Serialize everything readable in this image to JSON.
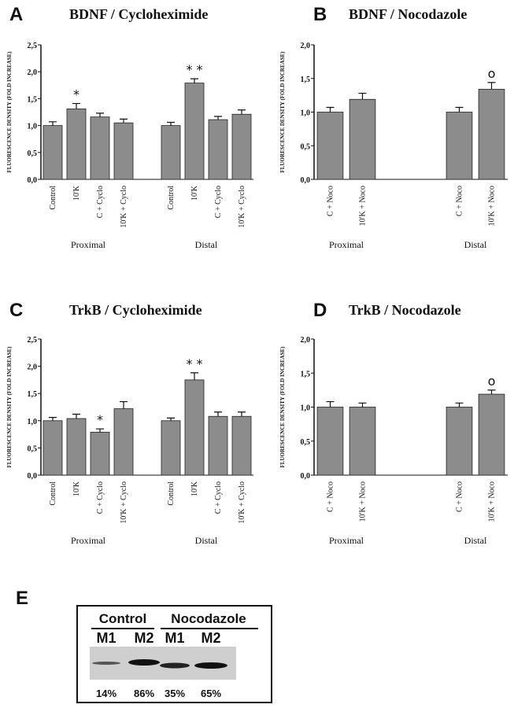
{
  "chart_data": [
    {
      "panel": "A",
      "type": "bar",
      "title": "BDNF / Cycloheximide",
      "ylabel": "FLUORESCENCE DENSITY (FOLD INCREASE)",
      "groups": [
        "Proximal",
        "Distal"
      ],
      "categories": [
        "Control",
        "10'K",
        "C + Cyclo",
        "10'K + Cyclo",
        "Control",
        "10'K",
        "C + Cyclo",
        "10'K + Cyclo"
      ],
      "values": [
        1.0,
        1.31,
        1.16,
        1.05,
        1.0,
        1.79,
        1.11,
        1.21
      ],
      "errors": [
        0.07,
        0.1,
        0.07,
        0.07,
        0.06,
        0.08,
        0.06,
        0.08
      ],
      "significance": [
        null,
        "*",
        null,
        null,
        null,
        "* *",
        null,
        null
      ],
      "color": "#8c8c8c",
      "ylim": [
        0,
        2.5
      ],
      "yticks": [
        {
          "value": 0,
          "label": "0,0"
        },
        {
          "value": 0.5,
          "label": "0,5"
        },
        {
          "value": 1,
          "label": "1,0"
        },
        {
          "value": 1.5,
          "label": "1,5"
        },
        {
          "value": 2,
          "label": "2,0"
        },
        {
          "value": 2.5,
          "label": "2,5"
        }
      ]
    },
    {
      "panel": "B",
      "type": "bar",
      "title": "BDNF / Nocodazole",
      "ylabel": "FLUORESCENCE DENSITY (FOLD INCREASE)",
      "groups": [
        "Proximal",
        "Distal"
      ],
      "categories": [
        "C + Noco",
        "10'K + Noco",
        "C + Noco",
        "10'K + Noco"
      ],
      "values": [
        1.0,
        1.19,
        1.0,
        1.34
      ],
      "errors": [
        0.07,
        0.09,
        0.07,
        0.1
      ],
      "significance": [
        null,
        null,
        null,
        "o"
      ],
      "color": "#8c8c8c",
      "ylim": [
        0,
        2
      ],
      "yticks": [
        {
          "value": 0,
          "label": "0,0"
        },
        {
          "value": 0.5,
          "label": "0,5"
        },
        {
          "value": 1,
          "label": "1,0"
        },
        {
          "value": 1.5,
          "label": "1,5"
        },
        {
          "value": 2,
          "label": "2,0"
        }
      ]
    },
    {
      "panel": "C",
      "type": "bar",
      "title": "TrkB / Cycloheximide",
      "ylabel": "FLUORESCENCE DENSITY (FOLD INCREASE)",
      "groups": [
        "Proximal",
        "Distal"
      ],
      "categories": [
        "Control",
        "10'K",
        "C + Cyclo",
        "10'K + Cyclo",
        "Control",
        "10'K",
        "C + Cyclo",
        "10'K + Cyclo"
      ],
      "values": [
        1.0,
        1.04,
        0.79,
        1.22,
        1.0,
        1.75,
        1.08,
        1.08
      ],
      "errors": [
        0.06,
        0.08,
        0.06,
        0.13,
        0.05,
        0.13,
        0.08,
        0.08
      ],
      "significance": [
        null,
        null,
        "*",
        null,
        null,
        "* *",
        null,
        null
      ],
      "color": "#8c8c8c",
      "ylim": [
        0,
        2.5
      ],
      "yticks": [
        {
          "value": 0,
          "label": "0,0"
        },
        {
          "value": 0.5,
          "label": "0,5"
        },
        {
          "value": 1,
          "label": "1,0"
        },
        {
          "value": 1.5,
          "label": "1,5"
        },
        {
          "value": 2,
          "label": "2,0"
        },
        {
          "value": 2.5,
          "label": "2,5"
        }
      ]
    },
    {
      "panel": "D",
      "type": "bar",
      "title": "TrkB / Nocodazole",
      "ylabel": "FLUORESCENCE DENSITY (FOLD INCREASE)",
      "groups": [
        "Proximal",
        "Distal"
      ],
      "categories": [
        "C + Noco",
        "10'K + Noco",
        "C + Noco",
        "10'K + Noco"
      ],
      "values": [
        1.0,
        1.0,
        1.0,
        1.19
      ],
      "errors": [
        0.08,
        0.06,
        0.06,
        0.06
      ],
      "significance": [
        null,
        null,
        null,
        "o"
      ],
      "color": "#8c8c8c",
      "ylim": [
        0,
        2
      ],
      "yticks": [
        {
          "value": 0,
          "label": "0,0"
        },
        {
          "value": 0.5,
          "label": "0,5"
        },
        {
          "value": 1,
          "label": "1,0"
        },
        {
          "value": 1.5,
          "label": "1,5"
        },
        {
          "value": 2,
          "label": "2,0"
        }
      ]
    }
  ],
  "blot": {
    "panel": "E",
    "groups": [
      "Control",
      "Nocodazole"
    ],
    "lanes": [
      "M1",
      "M2",
      "M1",
      "M2"
    ],
    "percentages": [
      "14%",
      "86%",
      "35%",
      "65%"
    ]
  }
}
